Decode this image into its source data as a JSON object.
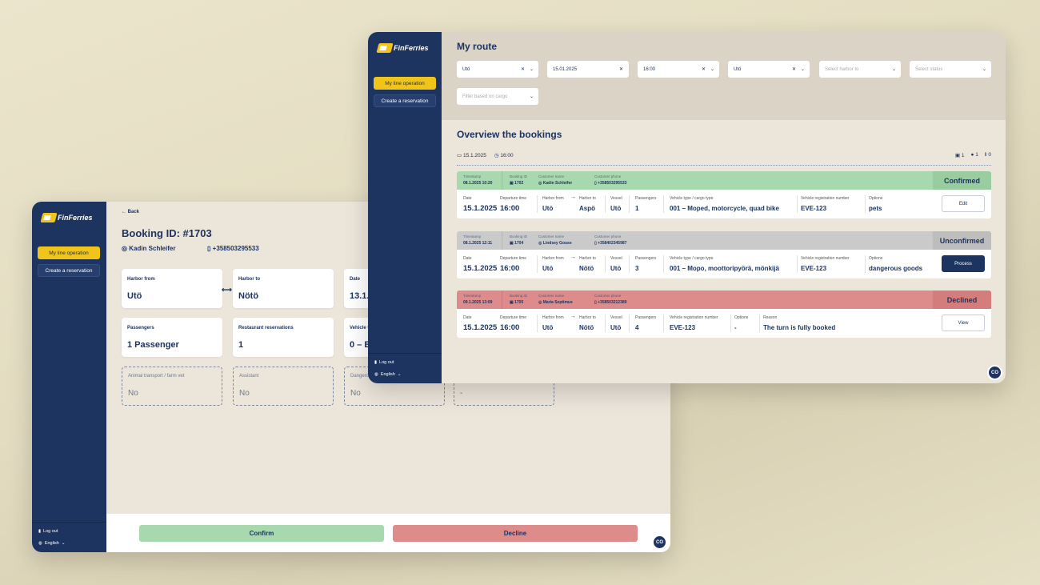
{
  "brand": "FinFerries",
  "sidebar": {
    "items": [
      {
        "label": "My line operation"
      },
      {
        "label": "Create a reservation"
      }
    ],
    "logout": "Log out",
    "language": "English"
  },
  "avatar_initials": "CO",
  "detail": {
    "back": "Back",
    "title": "Booking ID: #1703",
    "customer": "Kadin Schleifer",
    "phone": "+358503295533",
    "cards": [
      {
        "label": "Harbor from",
        "value": "Utö"
      },
      {
        "label": "Harbor to",
        "value": "Nötö"
      },
      {
        "label": "Date",
        "value": "13.1.2025"
      },
      {
        "label": "Passengers",
        "value": "1 Passenger"
      },
      {
        "label": "Restaurant reservations",
        "value": "1"
      },
      {
        "label": "Vehicle type",
        "value": "0 – Bicycle"
      }
    ],
    "options": [
      {
        "label": "Animal transport / farm vet",
        "value": "No"
      },
      {
        "label": "Assistant",
        "value": "No"
      },
      {
        "label": "Dangerous goods",
        "value": "No"
      },
      {
        "label": "",
        "value": "-"
      }
    ],
    "confirm": "Confirm",
    "decline": "Decline"
  },
  "route": {
    "title": "My route",
    "filters": [
      {
        "value": "Utö",
        "placeholder": "",
        "clear": true
      },
      {
        "value": "15.01.2025",
        "placeholder": "",
        "clear": true,
        "nochev": true
      },
      {
        "value": "16:00",
        "placeholder": "",
        "clear": true
      },
      {
        "value": "Utö",
        "placeholder": "",
        "clear": true
      },
      {
        "value": "",
        "placeholder": "Select harbor to"
      },
      {
        "value": "",
        "placeholder": "Select status"
      },
      {
        "value": "",
        "placeholder": "Filter based on cargo"
      }
    ],
    "overview_title": "Overview the bookings",
    "date": "15.1.2025",
    "time": "16:00",
    "counts": {
      "vehicles": "1",
      "passengers": "1",
      "restaurant": "0"
    },
    "header_labels": {
      "timestamp": "Timestamp",
      "booking_id": "Booking ID",
      "customer_name": "Customer name",
      "customer_phone": "Customer phone"
    },
    "bookings": [
      {
        "status": "Confirmed",
        "color": "#a8d8ad",
        "badge_color": "#99cc9e",
        "timestamp": "08.1.2025 10:20",
        "id": "1702",
        "name": "Kadin Schleifer",
        "phone": "+358503295533",
        "action": "Edit",
        "fields": [
          {
            "label": "Date",
            "value": "15.1.2025"
          },
          {
            "label": "Departure time",
            "value": "16:00"
          },
          {
            "label": "Harbor from",
            "value": "Utö"
          },
          {
            "label": "Harbor to",
            "value": "Aspö"
          },
          {
            "label": "Vessel",
            "value": "Utö"
          },
          {
            "label": "Passengers",
            "value": "1"
          },
          {
            "label": "Vehicle type / cargo type",
            "value": "001 – Moped, motorcycle, quad bike"
          },
          {
            "label": "Vehicle registration number",
            "value": "EVE-123"
          },
          {
            "label": "Options",
            "value": "pets"
          }
        ]
      },
      {
        "status": "Unconfirmed",
        "color": "#cacaca",
        "badge_color": "#bdbdbd",
        "timestamp": "08.1.2025 12:11",
        "id": "1704",
        "name": "Lindsey Gouse",
        "phone": "+358402345987",
        "action": "Process",
        "fields": [
          {
            "label": "Date",
            "value": "15.1.2025"
          },
          {
            "label": "Departure time",
            "value": "16:00"
          },
          {
            "label": "Harbor from",
            "value": "Utö"
          },
          {
            "label": "Harbor to",
            "value": "Nötö"
          },
          {
            "label": "Vessel",
            "value": "Utö"
          },
          {
            "label": "Passengers",
            "value": "3"
          },
          {
            "label": "Vehicle type / cargo type",
            "value": "001 – Mopo, moottoripyörä, mönkijä"
          },
          {
            "label": "Vehicle registration number",
            "value": "EVE-123"
          },
          {
            "label": "Options",
            "value": "dangerous goods"
          }
        ]
      },
      {
        "status": "Declined",
        "color": "#de8b8b",
        "badge_color": "#d37d7d",
        "timestamp": "09.1.2025 13:09",
        "id": "1705",
        "name": "Maria Septimus",
        "phone": "+358503212389",
        "action": "View",
        "fields": [
          {
            "label": "Date",
            "value": "15.1.2025"
          },
          {
            "label": "Departure time",
            "value": "16:00"
          },
          {
            "label": "Harbor from",
            "value": "Utö"
          },
          {
            "label": "Harbor to",
            "value": "Nötö"
          },
          {
            "label": "Vessel",
            "value": "Utö"
          },
          {
            "label": "Passengers",
            "value": "4"
          },
          {
            "label": "Vehicle registration number",
            "value": "EVE-123"
          },
          {
            "label": "Options",
            "value": "-"
          },
          {
            "label": "Reason",
            "value": "The turn is fully booked"
          }
        ]
      }
    ]
  }
}
